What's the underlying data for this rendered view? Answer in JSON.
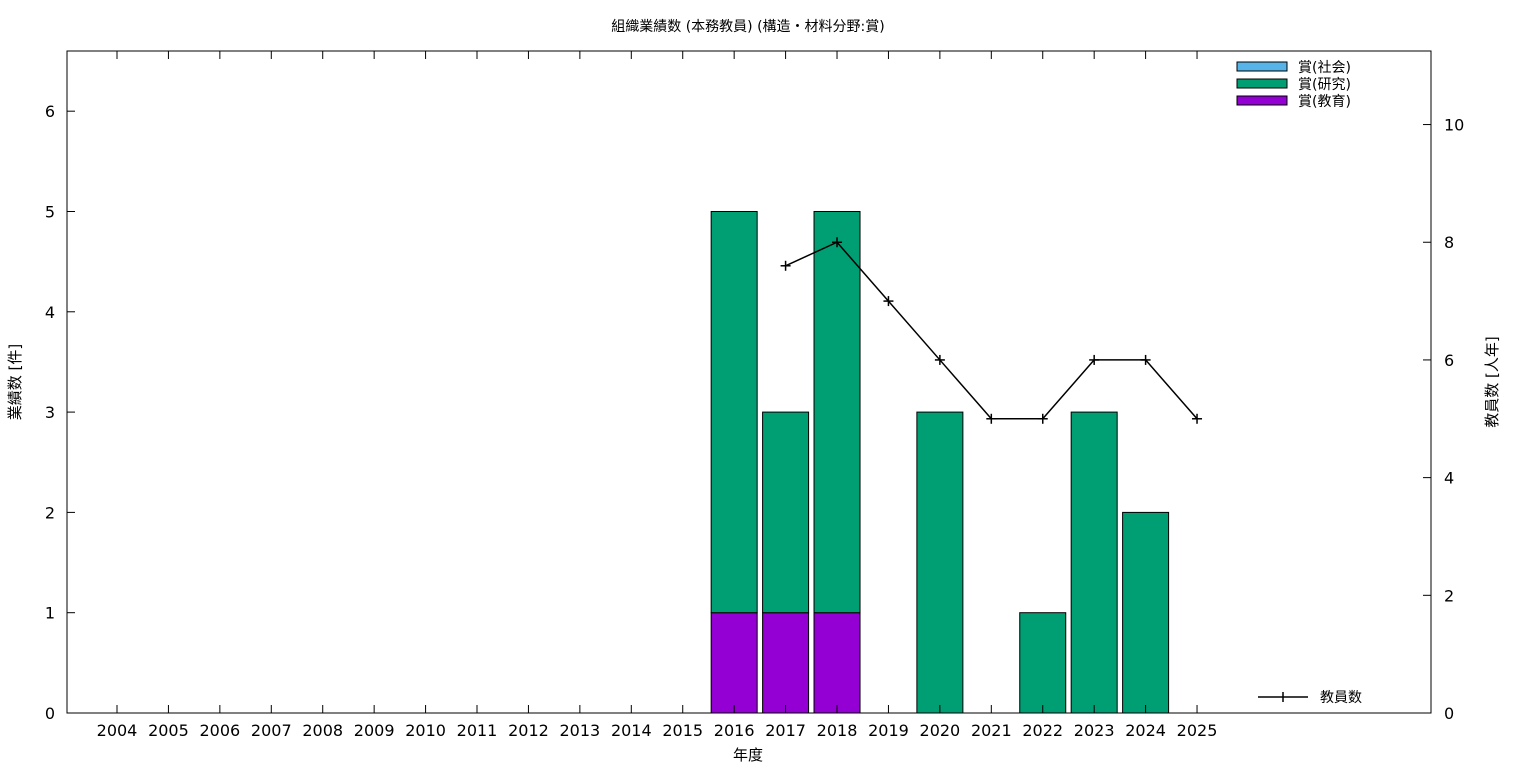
{
  "chart_data": {
    "type": "bar",
    "title": "組織業績数 (本務教員) (構造・材料分野:賞)",
    "xlabel": "年度",
    "ylabel": "業績数 [件]",
    "y2label": "教員数 [人年]",
    "categories": [
      "2004",
      "2005",
      "2006",
      "2007",
      "2008",
      "2009",
      "2010",
      "2011",
      "2012",
      "2013",
      "2014",
      "2015",
      "2016",
      "2017",
      "2018",
      "2019",
      "2020",
      "2021",
      "2022",
      "2023",
      "2024",
      "2025"
    ],
    "stacked": true,
    "ylim": [
      0,
      6.6
    ],
    "y2lim": [
      0,
      11.25
    ],
    "yticks": [
      "0",
      "1",
      "2",
      "3",
      "4",
      "5",
      "6"
    ],
    "y2ticks": [
      "0",
      "2",
      "4",
      "6",
      "8",
      "10"
    ],
    "grid": false,
    "legend_position": "top-right",
    "series": [
      {
        "name": "賞(教育)",
        "color": "#9400d3",
        "values": [
          0,
          0,
          0,
          0,
          0,
          0,
          0,
          0,
          0,
          0,
          0,
          0,
          1,
          1,
          1,
          0,
          0,
          0,
          0,
          0,
          0,
          0
        ]
      },
      {
        "name": "賞(研究)",
        "color": "#009e73",
        "values": [
          0,
          0,
          0,
          0,
          0,
          0,
          0,
          0,
          0,
          0,
          0,
          0,
          4,
          2,
          4,
          0,
          3,
          0,
          1,
          3,
          2,
          0
        ]
      },
      {
        "name": "賞(社会)",
        "color": "#56b4e9",
        "values": [
          0,
          0,
          0,
          0,
          0,
          0,
          0,
          0,
          0,
          0,
          0,
          0,
          0,
          0,
          0,
          0,
          0,
          0,
          0,
          0,
          0,
          0
        ]
      }
    ],
    "line_series": {
      "name": "教員数",
      "axis": "right",
      "color": "#000000",
      "points": [
        {
          "x": "2017",
          "y": 7.6
        },
        {
          "x": "2018",
          "y": 8
        },
        {
          "x": "2019",
          "y": 7
        },
        {
          "x": "2020",
          "y": 6
        },
        {
          "x": "2021",
          "y": 5
        },
        {
          "x": "2022",
          "y": 5
        },
        {
          "x": "2023",
          "y": 6
        },
        {
          "x": "2024",
          "y": 6
        },
        {
          "x": "2025",
          "y": 5
        }
      ]
    },
    "legend_order": [
      "賞(社会)",
      "賞(研究)",
      "賞(教育)"
    ]
  }
}
